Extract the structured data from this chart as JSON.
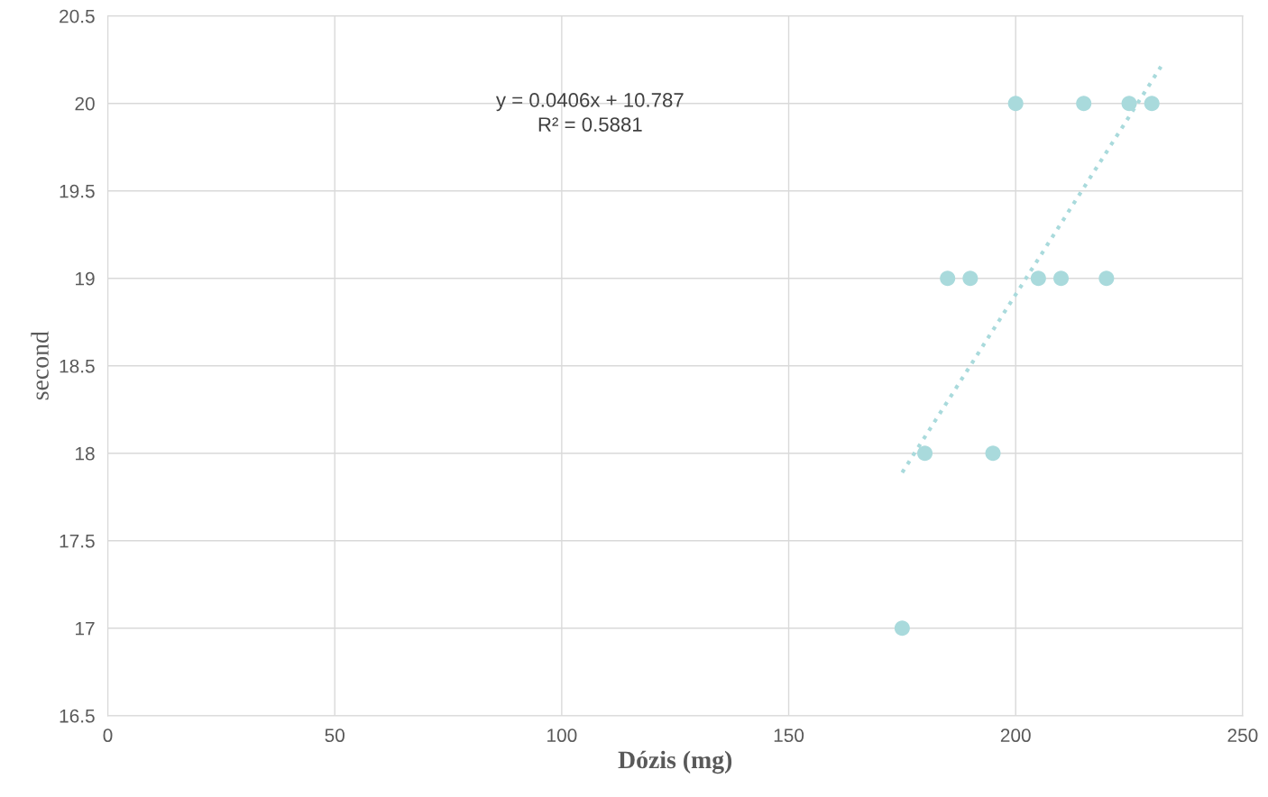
{
  "chart_data": {
    "type": "scatter",
    "xlabel": "Dózis (mg)",
    "ylabel": "second",
    "annotations": [
      "y = 0.0406x + 10.787",
      "R² = 0.5881"
    ],
    "series": [
      {
        "color": "#a9dadc",
        "marker": "circle",
        "x": [
          175,
          180,
          185,
          190,
          195,
          200,
          205,
          210,
          215,
          220,
          225,
          230
        ],
        "values": [
          17,
          18,
          19,
          19,
          18,
          20,
          19,
          19,
          20,
          19,
          20,
          20
        ]
      },
      {
        "type": "line",
        "color": "#a9dadc",
        "marker": "none",
        "line_style": "dotted",
        "x": [
          175,
          232
        ],
        "values": [
          17.89,
          20.21
        ]
      }
    ],
    "xlim": [
      0,
      250
    ],
    "xticks": [
      0,
      50,
      100,
      150,
      200,
      250
    ],
    "ylim": [
      16.5,
      20.5
    ],
    "yticks": [
      16.5,
      17,
      17.5,
      18,
      18.5,
      19,
      19.5,
      20,
      20.5
    ],
    "grid": true,
    "legend": false
  }
}
